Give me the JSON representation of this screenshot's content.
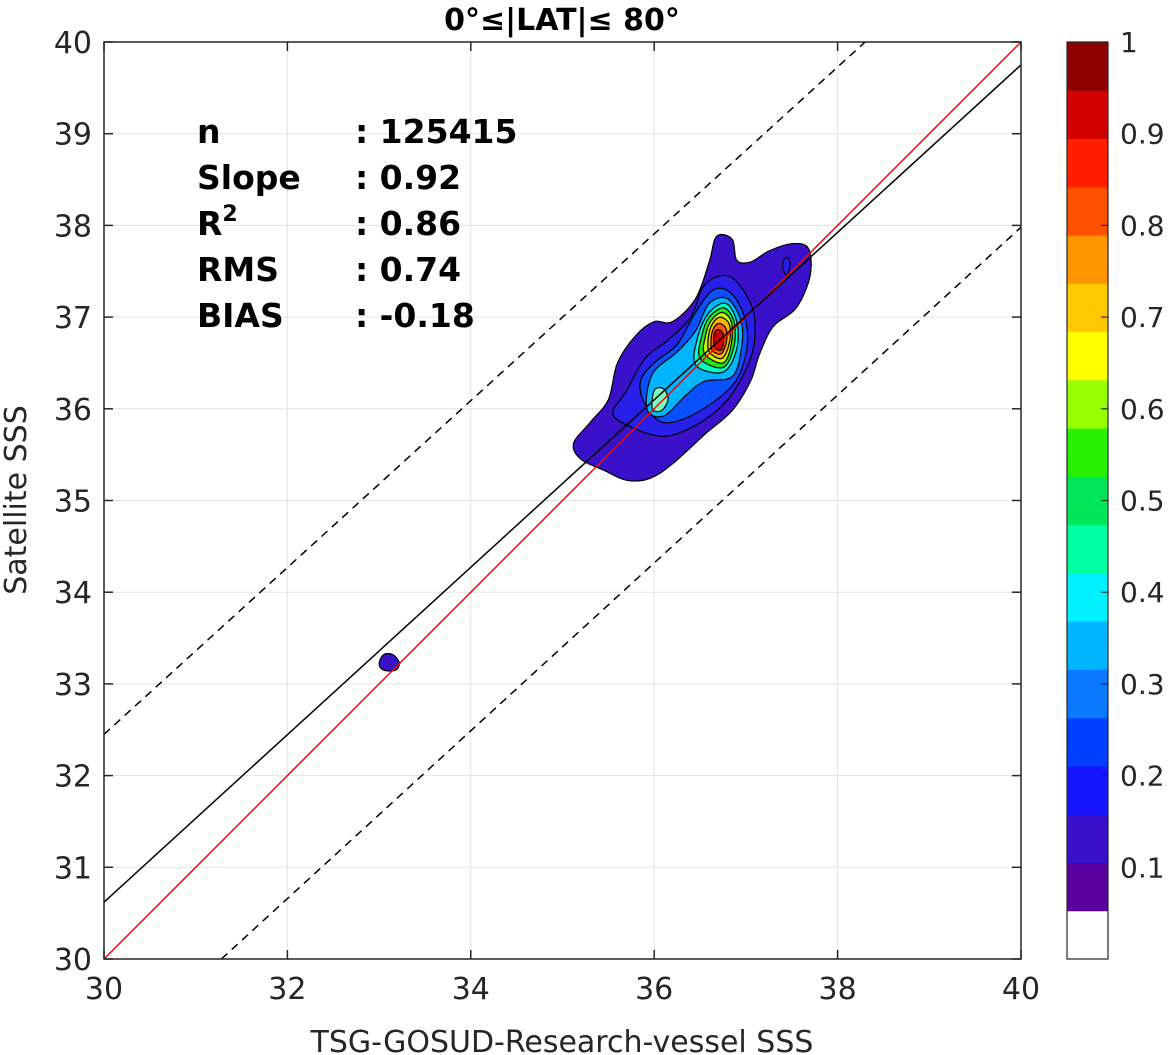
{
  "chart_data": {
    "type": "scatter",
    "title": "0°≤|LAT|≤ 80°",
    "xlabel": "TSG-GOSUD-Research-vessel SSS",
    "ylabel": "Satellite SSS",
    "xlim": [
      30,
      40
    ],
    "ylim": [
      30,
      40
    ],
    "xticks": [
      "30",
      "32",
      "34",
      "36",
      "38",
      "40"
    ],
    "yticks": [
      "30",
      "31",
      "32",
      "33",
      "34",
      "35",
      "36",
      "37",
      "38",
      "39",
      "40"
    ],
    "grid": true,
    "stats": [
      {
        "label": "n",
        "value": ": 125415"
      },
      {
        "label": "Slope",
        "value": ": 0.92"
      },
      {
        "label": "R",
        "sup": "2",
        "value": ": 0.86"
      },
      {
        "label": "RMS",
        "value": ": 0.74"
      },
      {
        "label": "BIAS",
        "value": ": -0.18"
      }
    ],
    "lines": [
      {
        "id": "identity",
        "color": "#ff0000",
        "style": "solid",
        "x": [
          30,
          40
        ],
        "y": [
          30,
          40
        ]
      },
      {
        "id": "fit",
        "color": "#000000",
        "style": "solid",
        "x": [
          30,
          40
        ],
        "y": [
          30.62,
          39.75
        ]
      },
      {
        "id": "upper-bound",
        "color": "#000000",
        "style": "dashed",
        "x": [
          30,
          38.3
        ],
        "y": [
          32.45,
          40
        ]
      },
      {
        "id": "lower-bound",
        "color": "#000000",
        "style": "dashed",
        "x": [
          31.28,
          40
        ],
        "y": [
          30,
          37.98
        ]
      }
    ],
    "density_levels": [
      0.1,
      0.2,
      0.3,
      0.4,
      0.5,
      0.6,
      0.7,
      0.8,
      0.9
    ],
    "density_peak": {
      "x": 36.7,
      "y": 36.72
    },
    "density_contours": [
      {
        "level": 0.05,
        "color": "#3a10c8",
        "points": [
          [
            35.12,
            35.62
          ],
          [
            35.2,
            35.45
          ],
          [
            35.45,
            35.33
          ],
          [
            35.7,
            35.22
          ],
          [
            35.95,
            35.24
          ],
          [
            36.2,
            35.4
          ],
          [
            36.55,
            35.72
          ],
          [
            36.85,
            35.98
          ],
          [
            37.05,
            36.3
          ],
          [
            37.15,
            36.6
          ],
          [
            37.3,
            36.9
          ],
          [
            37.55,
            37.1
          ],
          [
            37.7,
            37.45
          ],
          [
            37.68,
            37.75
          ],
          [
            37.5,
            37.8
          ],
          [
            37.25,
            37.72
          ],
          [
            37.05,
            37.6
          ],
          [
            36.9,
            37.62
          ],
          [
            36.85,
            37.85
          ],
          [
            36.68,
            37.88
          ],
          [
            36.6,
            37.6
          ],
          [
            36.45,
            37.2
          ],
          [
            36.2,
            36.95
          ],
          [
            36.0,
            36.95
          ],
          [
            35.8,
            36.8
          ],
          [
            35.6,
            36.5
          ],
          [
            35.5,
            36.1
          ],
          [
            35.3,
            35.85
          ]
        ]
      },
      {
        "level": 0.05,
        "color": "#3a10c8",
        "points": [
          [
            33.0,
            33.22
          ],
          [
            33.05,
            33.32
          ],
          [
            33.15,
            33.32
          ],
          [
            33.22,
            33.23
          ],
          [
            33.18,
            33.15
          ],
          [
            33.05,
            33.15
          ]
        ]
      },
      {
        "level": 0.1,
        "color": "#2820e8",
        "points": [
          [
            35.55,
            35.95
          ],
          [
            35.75,
            35.8
          ],
          [
            36.1,
            35.7
          ],
          [
            36.45,
            35.82
          ],
          [
            36.8,
            36.1
          ],
          [
            37.05,
            36.55
          ],
          [
            37.1,
            36.95
          ],
          [
            37.0,
            37.25
          ],
          [
            36.8,
            37.45
          ],
          [
            36.55,
            37.35
          ],
          [
            36.4,
            37.0
          ],
          [
            36.15,
            36.75
          ],
          [
            35.9,
            36.55
          ],
          [
            35.7,
            36.2
          ]
        ]
      },
      {
        "level": 0.2,
        "color": "#0a50ff",
        "points": [
          [
            35.9,
            36.05
          ],
          [
            36.1,
            35.85
          ],
          [
            36.45,
            35.95
          ],
          [
            36.85,
            36.25
          ],
          [
            37.0,
            36.6
          ],
          [
            37.0,
            36.95
          ],
          [
            36.85,
            37.25
          ],
          [
            36.65,
            37.3
          ],
          [
            36.45,
            37.05
          ],
          [
            36.25,
            36.7
          ],
          [
            36.0,
            36.5
          ],
          [
            35.85,
            36.3
          ]
        ]
      },
      {
        "level": 0.3,
        "color": "#00b4ff",
        "points": [
          [
            35.92,
            36.0
          ],
          [
            36.1,
            35.92
          ],
          [
            36.35,
            36.15
          ],
          [
            36.55,
            36.3
          ],
          [
            36.85,
            36.35
          ],
          [
            36.95,
            36.65
          ],
          [
            36.95,
            36.95
          ],
          [
            36.8,
            37.2
          ],
          [
            36.6,
            37.15
          ],
          [
            36.45,
            36.85
          ],
          [
            36.25,
            36.62
          ],
          [
            35.98,
            36.38
          ]
        ]
      },
      {
        "level": 0.35,
        "color": "#7cffc0",
        "points": [
          [
            35.98,
            36.0
          ],
          [
            36.08,
            35.98
          ],
          [
            36.15,
            36.1
          ],
          [
            36.1,
            36.22
          ],
          [
            36.0,
            36.2
          ]
        ]
      },
      {
        "level": 0.4,
        "color": "#00ffc4",
        "points": [
          [
            36.45,
            36.48
          ],
          [
            36.75,
            36.4
          ],
          [
            36.9,
            36.65
          ],
          [
            36.9,
            36.95
          ],
          [
            36.78,
            37.15
          ],
          [
            36.6,
            37.05
          ],
          [
            36.48,
            36.8
          ]
        ]
      },
      {
        "level": 0.5,
        "color": "#1ee61e",
        "points": [
          [
            36.5,
            36.55
          ],
          [
            36.75,
            36.45
          ],
          [
            36.87,
            36.68
          ],
          [
            36.87,
            36.95
          ],
          [
            36.76,
            37.1
          ],
          [
            36.6,
            37.0
          ],
          [
            36.52,
            36.8
          ]
        ]
      },
      {
        "level": 0.6,
        "color": "#c8ff00",
        "points": [
          [
            36.55,
            36.6
          ],
          [
            36.75,
            36.5
          ],
          [
            36.84,
            36.7
          ],
          [
            36.84,
            36.95
          ],
          [
            36.74,
            37.05
          ],
          [
            36.62,
            36.96
          ],
          [
            36.56,
            36.8
          ]
        ]
      },
      {
        "level": 0.7,
        "color": "#ffb400",
        "points": [
          [
            36.6,
            36.62
          ],
          [
            36.74,
            36.55
          ],
          [
            36.82,
            36.72
          ],
          [
            36.82,
            36.92
          ],
          [
            36.72,
            37.0
          ],
          [
            36.63,
            36.92
          ],
          [
            36.59,
            36.78
          ]
        ]
      },
      {
        "level": 0.8,
        "color": "#ff5a00",
        "points": [
          [
            36.63,
            36.64
          ],
          [
            36.73,
            36.6
          ],
          [
            36.79,
            36.74
          ],
          [
            36.78,
            36.88
          ],
          [
            36.7,
            36.93
          ],
          [
            36.64,
            36.86
          ],
          [
            36.62,
            36.75
          ]
        ]
      },
      {
        "level": 0.9,
        "color": "#c80000",
        "points": [
          [
            36.66,
            36.67
          ],
          [
            36.73,
            36.64
          ],
          [
            36.76,
            36.75
          ],
          [
            36.74,
            36.84
          ],
          [
            36.68,
            36.86
          ],
          [
            36.65,
            36.78
          ]
        ]
      },
      {
        "level": 0.05,
        "color": "#2820e8",
        "points": [
          [
            37.4,
            37.55
          ],
          [
            37.45,
            37.45
          ],
          [
            37.48,
            37.6
          ],
          [
            37.43,
            37.65
          ]
        ]
      }
    ],
    "colorbar": {
      "ticks": [
        "0.1",
        "0.2",
        "0.3",
        "0.4",
        "0.5",
        "0.6",
        "0.7",
        "0.8",
        "0.9",
        "1"
      ],
      "tick_values": [
        0.1,
        0.2,
        0.3,
        0.4,
        0.5,
        0.6,
        0.7,
        0.8,
        0.9,
        1.0
      ],
      "range": [
        0,
        1
      ],
      "colors": [
        "#ffffff",
        "#5a00a0",
        "#3a10c8",
        "#1414ff",
        "#0040ff",
        "#0a78ff",
        "#00b4ff",
        "#00f0ff",
        "#00ffa0",
        "#00e65a",
        "#28f000",
        "#96ff00",
        "#ffff00",
        "#ffc800",
        "#ff9600",
        "#ff5000",
        "#ff1e00",
        "#d20000",
        "#8c0000"
      ]
    }
  }
}
